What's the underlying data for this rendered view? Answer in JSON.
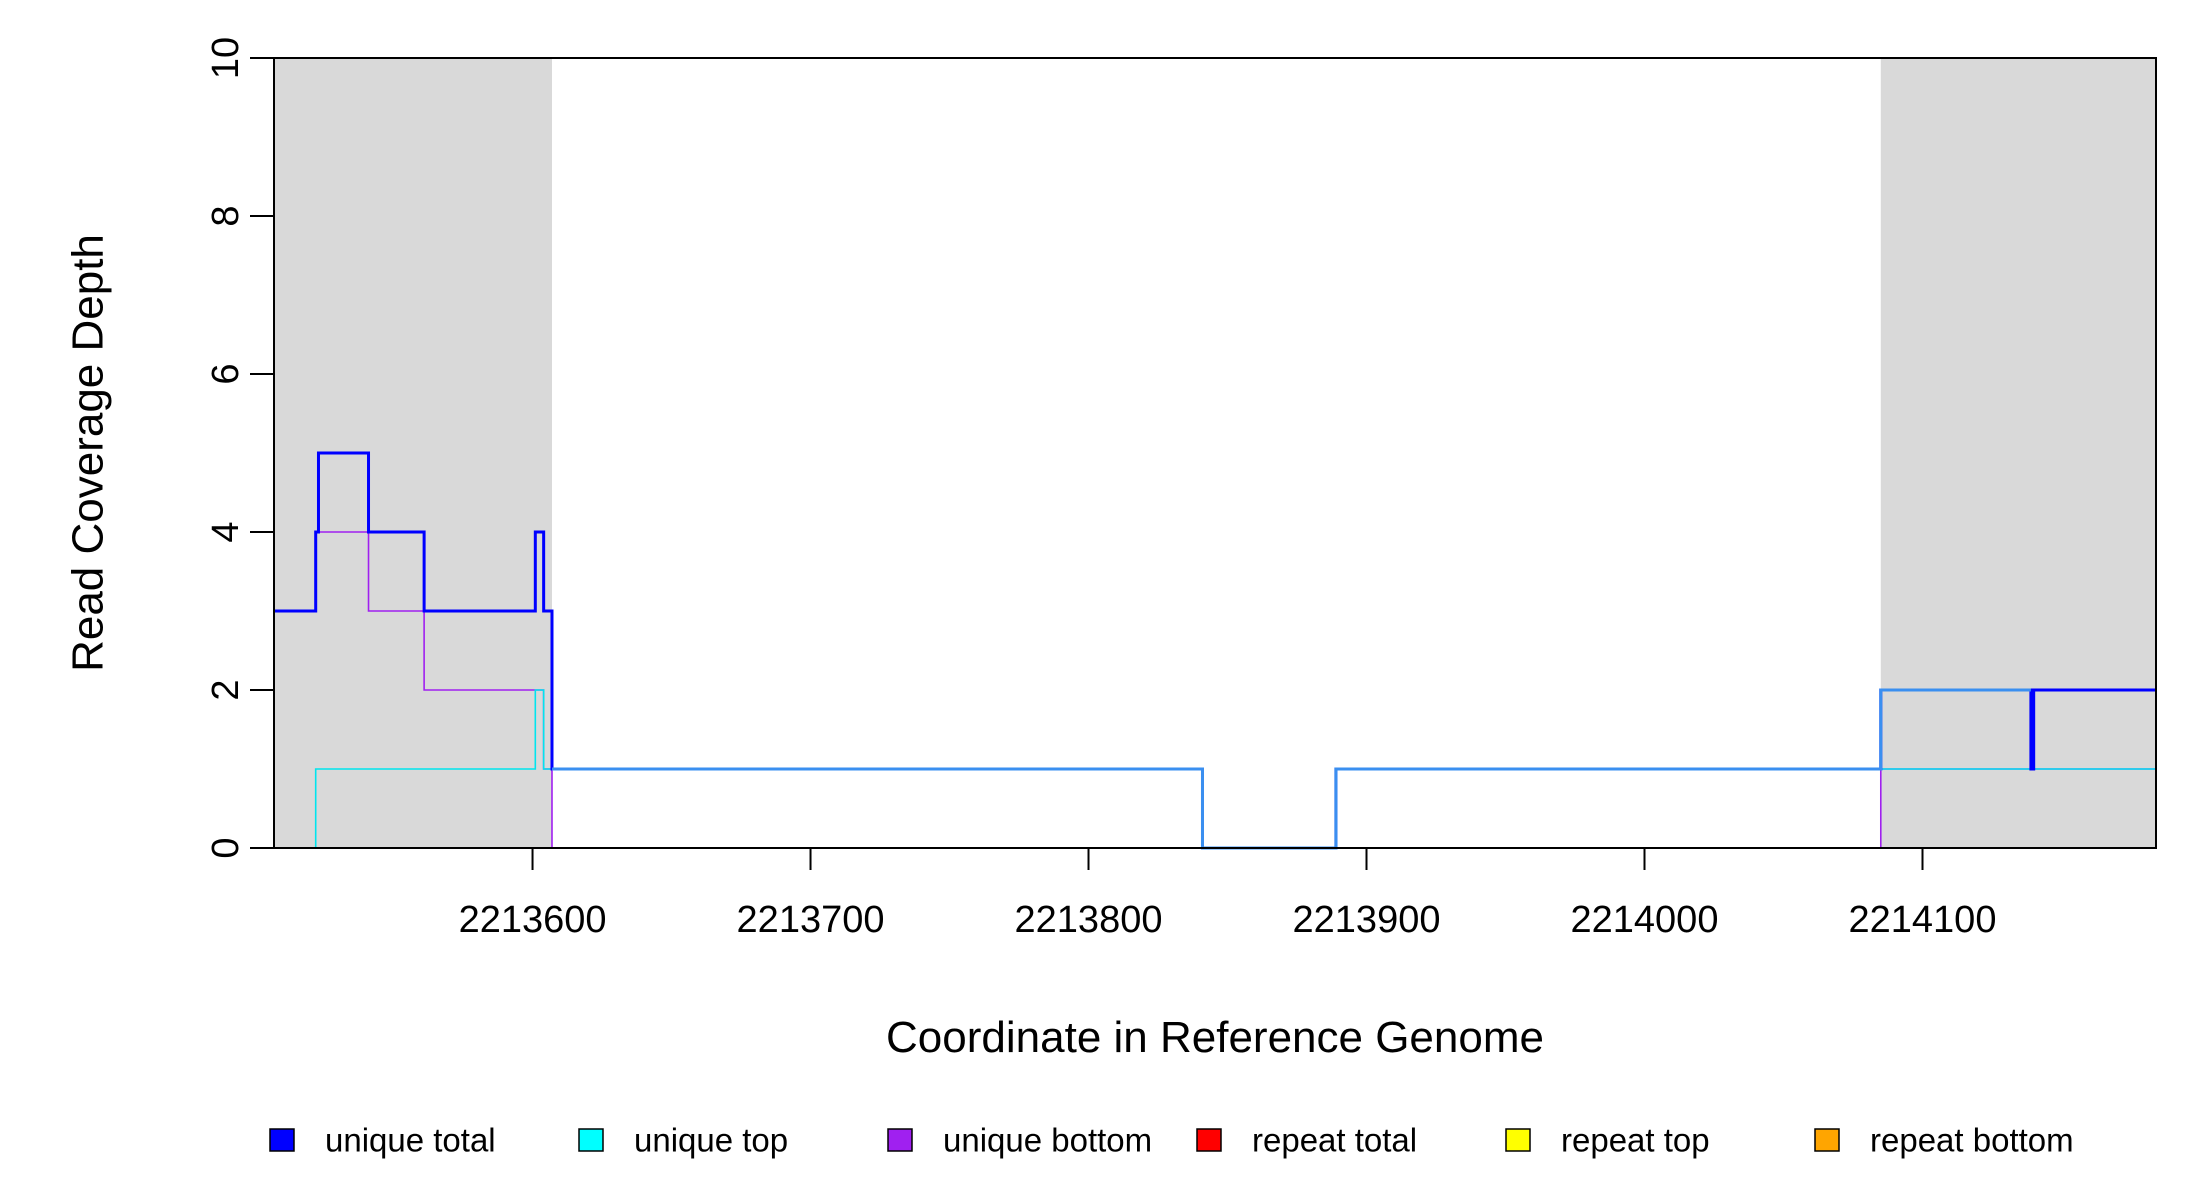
{
  "chart_data": {
    "type": "line",
    "step": true,
    "xlabel": "Coordinate in Reference Genome",
    "ylabel": "Read Coverage Depth",
    "xlim": [
      2213507,
      2214184
    ],
    "ylim": [
      0,
      10
    ],
    "xticks": [
      2213600,
      2213700,
      2213800,
      2213900,
      2214000,
      2214100
    ],
    "yticks": [
      0,
      2,
      4,
      6,
      8,
      10
    ],
    "shaded_regions": [
      {
        "x0": 2213507,
        "x1": 2213607,
        "color": "#d9d9d9"
      },
      {
        "x0": 2214085,
        "x1": 2214184,
        "color": "#d9d9d9"
      }
    ],
    "series": [
      {
        "name": "unique total",
        "color": "#0000ff",
        "points": [
          [
            2213507,
            3
          ],
          [
            2213522,
            4
          ],
          [
            2213523,
            5
          ],
          [
            2213541,
            4
          ],
          [
            2213561,
            3
          ],
          [
            2213601,
            4
          ],
          [
            2213604,
            3
          ],
          [
            2213607,
            1
          ],
          [
            2213841,
            0
          ],
          [
            2213889,
            1
          ],
          [
            2214085,
            2
          ],
          [
            2214139,
            1
          ],
          [
            2214140,
            2
          ],
          [
            2214184,
            2
          ]
        ]
      },
      {
        "name": "unique top",
        "color": "#00e5ee",
        "points": [
          [
            2213507,
            0
          ],
          [
            2213522,
            1
          ],
          [
            2213601,
            2
          ],
          [
            2213604,
            1
          ],
          [
            2213841,
            0
          ],
          [
            2213889,
            1
          ],
          [
            2214085,
            1
          ],
          [
            2214184,
            1
          ]
        ]
      },
      {
        "name": "unique bottom",
        "color": "#a020f0",
        "points": [
          [
            2213507,
            3
          ],
          [
            2213522,
            4
          ],
          [
            2213541,
            3
          ],
          [
            2213561,
            2
          ],
          [
            2213604,
            1
          ],
          [
            2213607,
            0
          ],
          [
            2214085,
            1
          ],
          [
            2214140,
            1
          ],
          [
            2214184,
            1
          ]
        ]
      },
      {
        "name": "repeat total",
        "color": "#ff0000",
        "points": [
          [
            2213507,
            0
          ],
          [
            2214184,
            0
          ]
        ]
      },
      {
        "name": "repeat top",
        "color": "#ffff00",
        "points": [
          [
            2213507,
            0
          ],
          [
            2214184,
            0
          ]
        ]
      },
      {
        "name": "repeat bottom",
        "color": "#ffa500",
        "points": [
          [
            2213507,
            0
          ],
          [
            2214184,
            0
          ]
        ]
      }
    ],
    "legend": {
      "placement": "bottom",
      "items": [
        {
          "label": "unique total",
          "color": "#0000ff"
        },
        {
          "label": "unique top",
          "color": "#00ffff"
        },
        {
          "label": "unique bottom",
          "color": "#a020f0"
        },
        {
          "label": "repeat total",
          "color": "#ff0000"
        },
        {
          "label": "repeat top",
          "color": "#ffff00"
        },
        {
          "label": "repeat bottom",
          "color": "#ffa500"
        }
      ]
    }
  }
}
